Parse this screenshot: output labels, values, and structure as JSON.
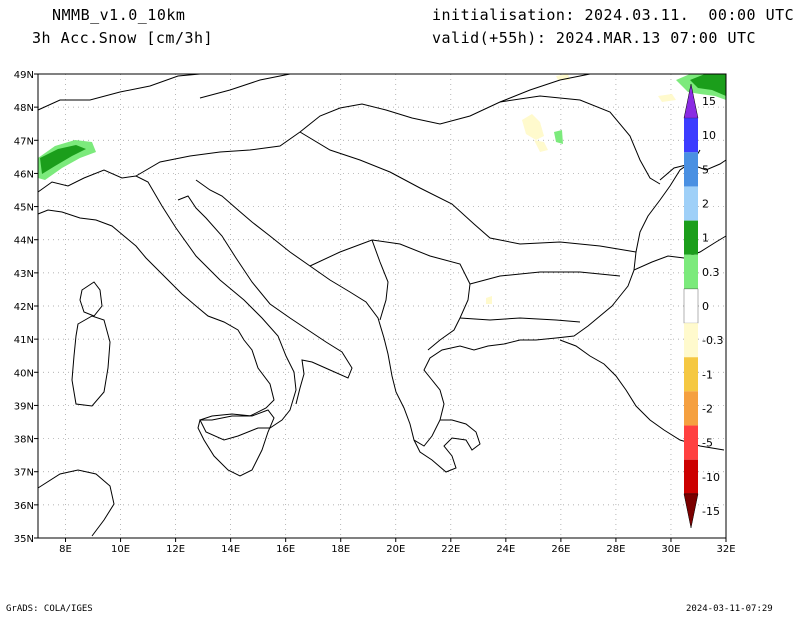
{
  "header": {
    "model": "NMMB_v1.0_10km",
    "variable": "3h Acc.Snow [cm/3h]",
    "initialisation": "initialisation: 2024.03.11.  00:00 UTC",
    "valid": "valid(+55h): 2024.MAR.13 07:00 UTC"
  },
  "map": {
    "lat_labels": [
      "49N",
      "48N",
      "47N",
      "46N",
      "45N",
      "44N",
      "43N",
      "42N",
      "41N",
      "40N",
      "39N",
      "38N",
      "37N",
      "36N",
      "35N"
    ],
    "lon_labels": [
      "8E",
      "10E",
      "12E",
      "14E",
      "16E",
      "18E",
      "20E",
      "22E",
      "24E",
      "26E",
      "28E",
      "30E",
      "32E"
    ]
  },
  "colorbar": {
    "labels": [
      "15",
      "10",
      "5",
      "2",
      "1",
      "0.3",
      "0",
      "-0.3",
      "-1",
      "-2",
      "-5",
      "-10",
      "-15"
    ],
    "colors": [
      "#8a2be2",
      "#3c3cff",
      "#4a90e2",
      "#9fd0f8",
      "#1b9e1b",
      "#7cea7c",
      "#ffffff",
      "#fffacd",
      "#f5c842",
      "#f5a040",
      "#ff4040",
      "#cc0000",
      "#7a0000"
    ]
  },
  "footer": {
    "left": "GrADS: COLA/IGES",
    "right": "2024-03-11-07:29"
  }
}
